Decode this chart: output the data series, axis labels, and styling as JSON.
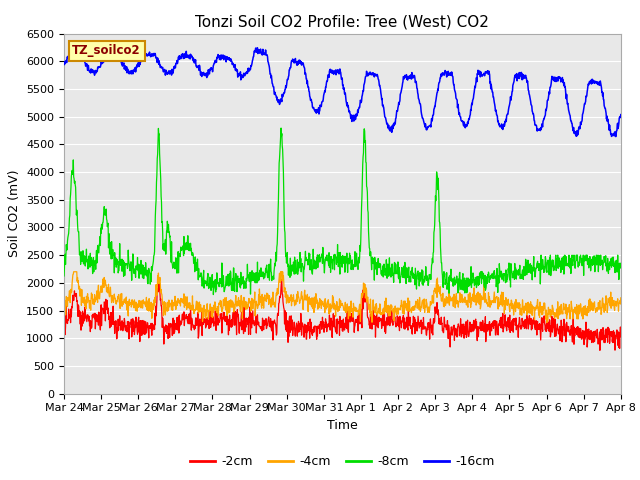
{
  "title": "Tonzi Soil CO2 Profile: Tree (West) CO2",
  "ylabel": "Soil CO2 (mV)",
  "xlabel": "Time",
  "legend_label": "TZ_soilco2",
  "ylim": [
    0,
    6500
  ],
  "yticks": [
    0,
    500,
    1000,
    1500,
    2000,
    2500,
    3000,
    3500,
    4000,
    4500,
    5000,
    5500,
    6000,
    6500
  ],
  "xtick_labels": [
    "Mar 24",
    "Mar 25",
    "Mar 26",
    "Mar 27",
    "Mar 28",
    "Mar 29",
    "Mar 30",
    "Mar 31",
    "Apr 1",
    "Apr 2",
    "Apr 3",
    "Apr 4",
    "Apr 5",
    "Apr 6",
    "Apr 7",
    "Apr 8"
  ],
  "colors": {
    "neg2cm": "#ff0000",
    "neg4cm": "#ffa500",
    "neg8cm": "#00dd00",
    "neg16cm": "#0000ff"
  },
  "legend_entries": [
    "-2cm",
    "-4cm",
    "-8cm",
    "-16cm"
  ],
  "plot_bg_color": "#e8e8e8",
  "title_fontsize": 11,
  "axis_fontsize": 9,
  "tick_fontsize": 8,
  "legend_box_color": "#ffffaa",
  "legend_box_edge": "#cc8800"
}
